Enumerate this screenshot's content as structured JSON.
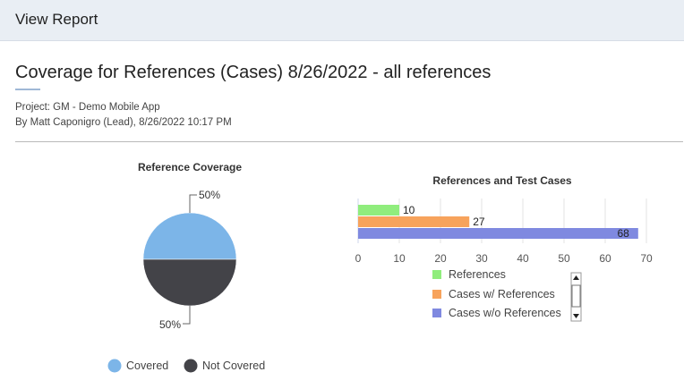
{
  "header": {
    "title": "View Report"
  },
  "report": {
    "title": "Coverage for References (Cases) 8/26/2022 - all references",
    "project_line": "Project: GM - Demo Mobile App",
    "author_line": "By Matt Caponigro (Lead), 8/26/2022 10:17 PM"
  },
  "chart_data": [
    {
      "type": "pie",
      "title": "Reference Coverage",
      "slices": [
        {
          "label": "Covered",
          "value": 50,
          "display": "50%",
          "color": "#7cb5e8"
        },
        {
          "label": "Not Covered",
          "value": 50,
          "display": "50%",
          "color": "#434348"
        }
      ],
      "legend": [
        "Covered",
        "Not Covered"
      ],
      "legend_position": "bottom"
    },
    {
      "type": "bar",
      "orientation": "horizontal",
      "title": "References and Test Cases",
      "categories": [
        "References",
        "Cases w/ References",
        "Cases w/o References"
      ],
      "values": [
        10,
        27,
        68
      ],
      "colors": [
        "#90ed7d",
        "#f7a35c",
        "#7f89e0"
      ],
      "xlim": [
        0,
        70
      ],
      "xticks": [
        0,
        10,
        20,
        30,
        40,
        50,
        60,
        70
      ],
      "grid": true,
      "legend_position": "bottom"
    }
  ],
  "icons": {
    "scroll_up": "scroll-up-arrow-icon",
    "scroll_down": "scroll-down-arrow-icon"
  }
}
